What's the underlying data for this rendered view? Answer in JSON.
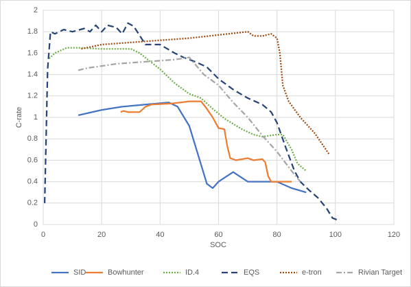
{
  "chart_data": {
    "type": "line",
    "x_label": "SOC",
    "y_label": "C-rate",
    "xlim": [
      0,
      120
    ],
    "xticks": [
      0,
      20,
      40,
      60,
      80,
      100,
      120
    ],
    "ylim": [
      0,
      2
    ],
    "yticks": [
      0,
      0.2,
      0.4,
      0.6,
      0.8,
      1,
      1.2,
      1.4,
      1.6,
      1.8,
      2
    ],
    "grid": true,
    "legend": "bottom",
    "series": [
      {
        "name": "SID",
        "color": "#4472c4",
        "dash": "none",
        "x": [
          12,
          20,
          27,
          35,
          43,
          46,
          50,
          53,
          56,
          58,
          60,
          65,
          70,
          80,
          85,
          90
        ],
        "values": [
          1.02,
          1.07,
          1.1,
          1.12,
          1.14,
          1.1,
          0.92,
          0.65,
          0.38,
          0.34,
          0.4,
          0.49,
          0.4,
          0.4,
          0.34,
          0.3
        ]
      },
      {
        "name": "Bowhunter",
        "color": "#ed7d31",
        "dash": "none",
        "x": [
          26.5,
          27.5,
          29,
          33,
          35,
          37,
          44,
          47,
          50,
          54,
          56,
          58,
          60,
          62,
          63,
          64,
          66,
          70,
          72,
          75,
          76,
          77,
          78,
          85
        ],
        "values": [
          1.05,
          1.06,
          1.05,
          1.05,
          1.1,
          1.12,
          1.13,
          1.14,
          1.15,
          1.15,
          1.08,
          1.0,
          0.9,
          0.89,
          0.73,
          0.62,
          0.6,
          0.62,
          0.6,
          0.61,
          0.58,
          0.45,
          0.4,
          0.4
        ]
      },
      {
        "name": "ID.4",
        "color": "#70ad47",
        "dash": "2,2",
        "x": [
          2,
          4,
          8,
          12,
          20,
          30,
          33,
          40,
          45,
          50,
          54,
          58,
          62,
          68,
          72,
          75,
          80,
          82,
          85,
          87,
          90
        ],
        "values": [
          1.55,
          1.6,
          1.65,
          1.65,
          1.64,
          1.64,
          1.6,
          1.45,
          1.32,
          1.22,
          1.18,
          1.08,
          0.99,
          0.89,
          0.84,
          0.82,
          0.84,
          0.84,
          0.7,
          0.57,
          0.5
        ]
      },
      {
        "name": "EQS",
        "color": "#264478",
        "dash": "9,5",
        "x": [
          0.5,
          1.5,
          2.5,
          4,
          7,
          10,
          14,
          16,
          18,
          20,
          22,
          25,
          27,
          29,
          31,
          35,
          40,
          45,
          48,
          52,
          56,
          60,
          65,
          70,
          75,
          78,
          80,
          83,
          86,
          88,
          91,
          94,
          97,
          99,
          101
        ],
        "values": [
          0.2,
          1.45,
          1.8,
          1.78,
          1.82,
          1.8,
          1.83,
          1.8,
          1.86,
          1.8,
          1.86,
          1.84,
          1.78,
          1.88,
          1.85,
          1.68,
          1.68,
          1.6,
          1.56,
          1.52,
          1.47,
          1.36,
          1.26,
          1.18,
          1.12,
          1.05,
          0.95,
          0.72,
          0.5,
          0.4,
          0.32,
          0.25,
          0.15,
          0.06,
          0.04
        ]
      },
      {
        "name": "e-tron",
        "color": "#9e480e",
        "dash": "2,2",
        "x": [
          13,
          20,
          30,
          40,
          50,
          60,
          70,
          72,
          75,
          78,
          80,
          81,
          82,
          84,
          88,
          93,
          98
        ],
        "values": [
          1.64,
          1.68,
          1.7,
          1.72,
          1.74,
          1.77,
          1.8,
          1.76,
          1.76,
          1.78,
          1.74,
          1.6,
          1.3,
          1.15,
          1.0,
          0.85,
          0.65
        ]
      },
      {
        "name": "Rivian Target",
        "color": "#a5a5a5",
        "dash": "8,3,2,3",
        "x": [
          12,
          15,
          20,
          25,
          30,
          35,
          45,
          50,
          55,
          60,
          65,
          70,
          75,
          80,
          85,
          88
        ],
        "values": [
          1.44,
          1.46,
          1.48,
          1.5,
          1.51,
          1.52,
          1.54,
          1.56,
          1.4,
          1.3,
          1.14,
          1.0,
          0.83,
          0.68,
          0.5,
          0.4
        ]
      }
    ]
  }
}
